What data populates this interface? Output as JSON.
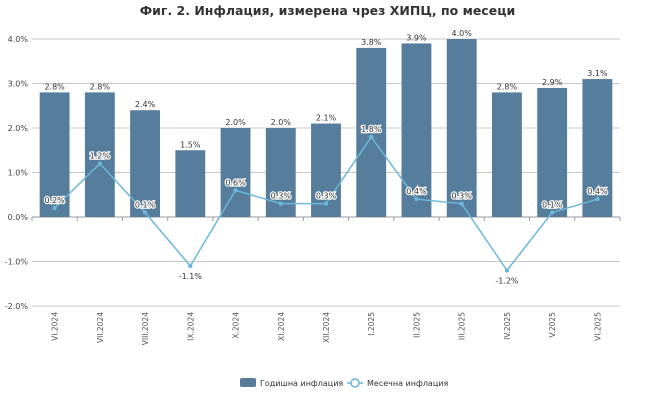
{
  "chart_data": {
    "type": "bar",
    "title": "Фиг. 2. Инфлация, измерена чрез ХИПЦ, по месеци",
    "categories": [
      "VI.2024",
      "VII.2024",
      "VIII.2024",
      "IX.2024",
      "X.2024",
      "XI.2024",
      "XII.2024",
      "I.2025",
      "II.2025",
      "III.2025",
      "IV.2025",
      "V.2025",
      "VI.2025"
    ],
    "series": [
      {
        "name": "Годишна инфлация",
        "type": "bar",
        "color": "#567d9b",
        "values": [
          2.8,
          2.8,
          2.4,
          1.5,
          2.0,
          2.0,
          2.1,
          3.8,
          3.9,
          4.0,
          2.8,
          2.9,
          3.1
        ],
        "labels": [
          "2.8%",
          "2.8%",
          "2.4%",
          "1.5%",
          "2.0%",
          "2.0%",
          "2.1%",
          "3.8%",
          "3.9%",
          "4.0%",
          "2.8%",
          "2.9%",
          "3.1%"
        ]
      },
      {
        "name": "Месечна инфлация",
        "type": "line",
        "color": "#6bb8db",
        "values": [
          0.2,
          1.2,
          0.1,
          -1.1,
          0.6,
          0.3,
          0.3,
          1.8,
          0.4,
          0.3,
          -1.2,
          0.1,
          0.4
        ],
        "labels": [
          "0.2%",
          "1.2%",
          "0.1%",
          "-1.1%",
          "0.6%",
          "0.3%",
          "0.3%",
          "1.8%",
          "0.4%",
          "0.3%",
          "-1.2%",
          "0.1%",
          "0.4%"
        ]
      }
    ],
    "ylim": [
      -2.0,
      4.0
    ],
    "yticks": [
      -2.0,
      -1.0,
      0.0,
      1.0,
      2.0,
      3.0,
      4.0
    ],
    "ytick_labels": [
      "-2.0%",
      "-1.0%",
      "0.0%",
      "1.0%",
      "2.0%",
      "3.0%",
      "4.0%"
    ],
    "grid": true,
    "legend_position": "bottom-center"
  }
}
